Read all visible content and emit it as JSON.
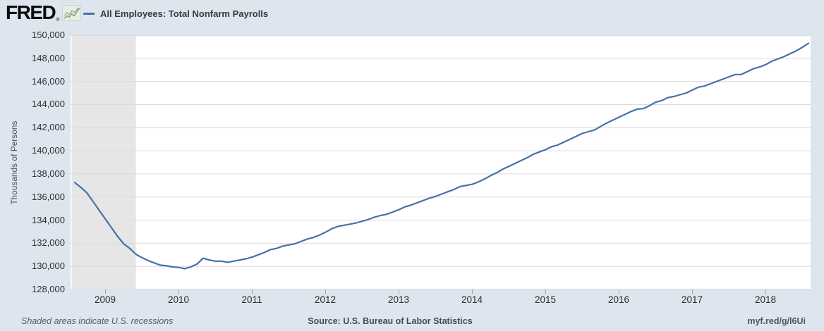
{
  "header": {
    "logo_text": "FRED",
    "logo_registered": "®",
    "legend": {
      "label": "All Employees: Total Nonfarm Payrolls"
    }
  },
  "footer": {
    "recession_note": "Shaded areas indicate U.S. recessions",
    "source": "Source: U.S. Bureau of Labor Statistics",
    "short_link": "myf.red/g/l6Ui"
  },
  "colors": {
    "background": "#dde5ee",
    "plot_background": "#ffffff",
    "line": "#4572a7",
    "recession_band": "#e6e6e6",
    "gridline": "#dcdcdc"
  },
  "chart_data": {
    "type": "line",
    "title": "All Employees: Total Nonfarm Payrolls",
    "ylabel": "Thousands of Persons",
    "ylim": [
      128000,
      150000
    ],
    "y_tick_interval": 2000,
    "y_tick_labels": [
      "150,000",
      "148,000",
      "146,000",
      "144,000",
      "142,000",
      "140,000",
      "138,000",
      "136,000",
      "134,000",
      "132,000",
      "130,000",
      "128,000"
    ],
    "x_tick_labels": [
      "2009",
      "2010",
      "2011",
      "2012",
      "2013",
      "2014",
      "2015",
      "2016",
      "2017",
      "2018"
    ],
    "x_range": [
      "2008-08",
      "2018-08"
    ],
    "grid": "horizontal",
    "legend_position": "top-left",
    "recession_bands": [
      {
        "start": "2008-08",
        "end": "2009-06"
      }
    ],
    "series": [
      {
        "name": "All Employees: Total Nonfarm Payrolls",
        "color": "#4572a7",
        "points": [
          [
            "2008-08",
            137250
          ],
          [
            "2008-09",
            136830
          ],
          [
            "2008-10",
            136350
          ],
          [
            "2008-11",
            135600
          ],
          [
            "2008-12",
            134850
          ],
          [
            "2009-01",
            134100
          ],
          [
            "2009-02",
            133350
          ],
          [
            "2009-03",
            132600
          ],
          [
            "2009-04",
            131950
          ],
          [
            "2009-05",
            131550
          ],
          [
            "2009-06",
            131050
          ],
          [
            "2009-07",
            130750
          ],
          [
            "2009-08",
            130500
          ],
          [
            "2009-09",
            130300
          ],
          [
            "2009-10",
            130100
          ],
          [
            "2009-11",
            130050
          ],
          [
            "2009-12",
            129950
          ],
          [
            "2010-01",
            129900
          ],
          [
            "2010-02",
            129800
          ],
          [
            "2010-03",
            129950
          ],
          [
            "2010-04",
            130200
          ],
          [
            "2010-05",
            130700
          ],
          [
            "2010-06",
            130550
          ],
          [
            "2010-07",
            130450
          ],
          [
            "2010-08",
            130450
          ],
          [
            "2010-09",
            130350
          ],
          [
            "2010-10",
            130450
          ],
          [
            "2010-11",
            130550
          ],
          [
            "2010-12",
            130650
          ],
          [
            "2011-01",
            130800
          ],
          [
            "2011-02",
            131000
          ],
          [
            "2011-03",
            131200
          ],
          [
            "2011-04",
            131450
          ],
          [
            "2011-05",
            131550
          ],
          [
            "2011-06",
            131750
          ],
          [
            "2011-07",
            131850
          ],
          [
            "2011-08",
            131950
          ],
          [
            "2011-09",
            132150
          ],
          [
            "2011-10",
            132350
          ],
          [
            "2011-11",
            132500
          ],
          [
            "2011-12",
            132700
          ],
          [
            "2012-01",
            132950
          ],
          [
            "2012-02",
            133250
          ],
          [
            "2012-03",
            133450
          ],
          [
            "2012-04",
            133550
          ],
          [
            "2012-05",
            133650
          ],
          [
            "2012-06",
            133750
          ],
          [
            "2012-07",
            133900
          ],
          [
            "2012-08",
            134050
          ],
          [
            "2012-09",
            134250
          ],
          [
            "2012-10",
            134400
          ],
          [
            "2012-11",
            134500
          ],
          [
            "2012-12",
            134700
          ],
          [
            "2013-01",
            134900
          ],
          [
            "2013-02",
            135150
          ],
          [
            "2013-03",
            135300
          ],
          [
            "2013-04",
            135500
          ],
          [
            "2013-05",
            135700
          ],
          [
            "2013-06",
            135900
          ],
          [
            "2013-07",
            136050
          ],
          [
            "2013-08",
            136250
          ],
          [
            "2013-09",
            136450
          ],
          [
            "2013-10",
            136650
          ],
          [
            "2013-11",
            136900
          ],
          [
            "2013-12",
            137000
          ],
          [
            "2014-01",
            137100
          ],
          [
            "2014-02",
            137300
          ],
          [
            "2014-03",
            137550
          ],
          [
            "2014-04",
            137850
          ],
          [
            "2014-05",
            138100
          ],
          [
            "2014-06",
            138400
          ],
          [
            "2014-07",
            138650
          ],
          [
            "2014-08",
            138900
          ],
          [
            "2014-09",
            139150
          ],
          [
            "2014-10",
            139400
          ],
          [
            "2014-11",
            139700
          ],
          [
            "2014-12",
            139900
          ],
          [
            "2015-01",
            140100
          ],
          [
            "2015-02",
            140350
          ],
          [
            "2015-03",
            140500
          ],
          [
            "2015-04",
            140750
          ],
          [
            "2015-05",
            141000
          ],
          [
            "2015-06",
            141250
          ],
          [
            "2015-07",
            141500
          ],
          [
            "2015-08",
            141650
          ],
          [
            "2015-09",
            141800
          ],
          [
            "2015-10",
            142100
          ],
          [
            "2015-11",
            142400
          ],
          [
            "2015-12",
            142650
          ],
          [
            "2016-01",
            142900
          ],
          [
            "2016-02",
            143150
          ],
          [
            "2016-03",
            143400
          ],
          [
            "2016-04",
            143600
          ],
          [
            "2016-05",
            143650
          ],
          [
            "2016-06",
            143900
          ],
          [
            "2016-07",
            144200
          ],
          [
            "2016-08",
            144350
          ],
          [
            "2016-09",
            144600
          ],
          [
            "2016-10",
            144700
          ],
          [
            "2016-11",
            144850
          ],
          [
            "2016-12",
            145000
          ],
          [
            "2017-01",
            145250
          ],
          [
            "2017-02",
            145500
          ],
          [
            "2017-03",
            145600
          ],
          [
            "2017-04",
            145800
          ],
          [
            "2017-05",
            146000
          ],
          [
            "2017-06",
            146200
          ],
          [
            "2017-07",
            146400
          ],
          [
            "2017-08",
            146600
          ],
          [
            "2017-09",
            146600
          ],
          [
            "2017-10",
            146850
          ],
          [
            "2017-11",
            147100
          ],
          [
            "2017-12",
            147250
          ],
          [
            "2018-01",
            147450
          ],
          [
            "2018-02",
            147750
          ],
          [
            "2018-03",
            147950
          ],
          [
            "2018-04",
            148150
          ],
          [
            "2018-05",
            148400
          ],
          [
            "2018-06",
            148650
          ],
          [
            "2018-07",
            148950
          ],
          [
            "2018-08",
            149300
          ]
        ]
      }
    ]
  }
}
